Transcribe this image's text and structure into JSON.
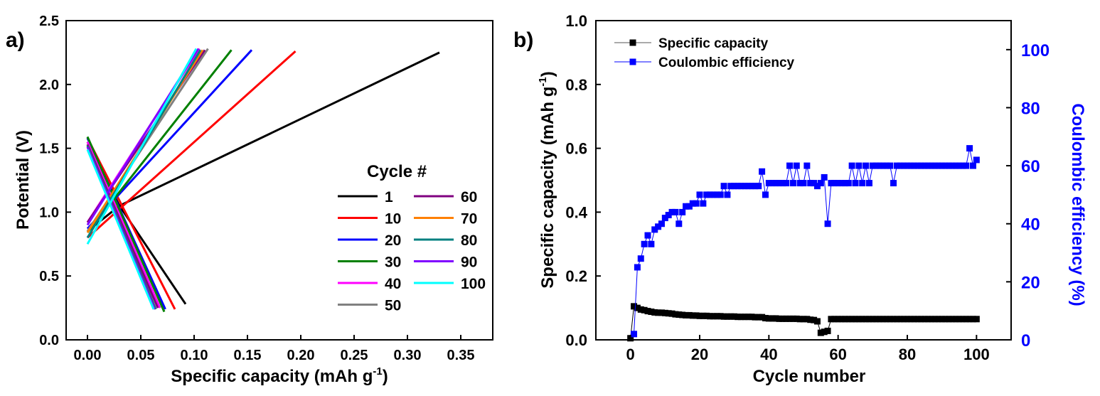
{
  "panels": {
    "a_label": "a)",
    "b_label": "b)"
  },
  "chart_data": [
    {
      "type": "line",
      "xlabel": "Specific capacity (mAh g",
      "xlabel_sup": "-1",
      "xlabel_end": ")",
      "ylabel": "Potential (V)",
      "xlim": [
        -0.02,
        0.38
      ],
      "ylim": [
        0.0,
        2.5
      ],
      "xticks": [
        "0.00",
        "0.05",
        "0.10",
        "0.15",
        "0.20",
        "0.25",
        "0.30",
        "0.35"
      ],
      "yticks": [
        "0.0",
        "0.5",
        "1.0",
        "1.5",
        "2.0",
        "2.5"
      ],
      "legend_title": "Cycle #",
      "legend_placement": "center-right",
      "series": [
        {
          "name": "1",
          "color": "#000000",
          "discharge": [
            [
              0.0,
              1.55
            ],
            [
              0.03,
              1.05
            ],
            [
              0.092,
              0.28
            ]
          ],
          "charge": [
            [
              0.0,
              0.85
            ],
            [
              0.03,
              1.05
            ],
            [
              0.33,
              2.25
            ]
          ]
        },
        {
          "name": "10",
          "color": "#ff0000",
          "discharge": [
            [
              0.0,
              1.58
            ],
            [
              0.082,
              0.24
            ]
          ],
          "charge": [
            [
              0.0,
              0.8
            ],
            [
              0.195,
              2.26
            ]
          ]
        },
        {
          "name": "20",
          "color": "#0000ff",
          "discharge": [
            [
              0.0,
              1.58
            ],
            [
              0.073,
              0.24
            ]
          ],
          "charge": [
            [
              0.0,
              0.87
            ],
            [
              0.154,
              2.27
            ]
          ]
        },
        {
          "name": "30",
          "color": "#008000",
          "discharge": [
            [
              0.0,
              1.59
            ],
            [
              0.072,
              0.22
            ]
          ],
          "charge": [
            [
              0.0,
              0.84
            ],
            [
              0.135,
              2.27
            ]
          ]
        },
        {
          "name": "40",
          "color": "#ff00ff",
          "discharge": [
            [
              0.0,
              1.55
            ],
            [
              0.068,
              0.25
            ]
          ],
          "charge": [
            [
              0.0,
              0.92
            ],
            [
              0.105,
              2.28
            ]
          ]
        },
        {
          "name": "50",
          "color": "#808080",
          "discharge": [
            [
              0.0,
              1.53
            ],
            [
              0.066,
              0.25
            ]
          ],
          "charge": [
            [
              0.0,
              0.85
            ],
            [
              0.113,
              2.28
            ]
          ]
        },
        {
          "name": "60",
          "color": "#800080",
          "discharge": [
            [
              0.0,
              1.53
            ],
            [
              0.066,
              0.25
            ]
          ],
          "charge": [
            [
              0.0,
              0.92
            ],
            [
              0.11,
              2.27
            ]
          ]
        },
        {
          "name": "70",
          "color": "#ff8000",
          "discharge": [
            [
              0.0,
              1.52
            ],
            [
              0.064,
              0.24
            ]
          ],
          "charge": [
            [
              0.0,
              0.84
            ],
            [
              0.108,
              2.27
            ]
          ]
        },
        {
          "name": "80",
          "color": "#008080",
          "discharge": [
            [
              0.0,
              1.52
            ],
            [
              0.064,
              0.24
            ]
          ],
          "charge": [
            [
              0.0,
              0.8
            ],
            [
              0.106,
              2.27
            ]
          ]
        },
        {
          "name": "90",
          "color": "#8000ff",
          "discharge": [
            [
              0.0,
              1.51
            ],
            [
              0.063,
              0.24
            ]
          ],
          "charge": [
            [
              0.0,
              0.9
            ],
            [
              0.104,
              2.28
            ]
          ]
        },
        {
          "name": "100",
          "color": "#00ffff",
          "discharge": [
            [
              0.0,
              1.49
            ],
            [
              0.062,
              0.24
            ]
          ],
          "charge": [
            [
              0.0,
              0.75
            ],
            [
              0.102,
              2.28
            ]
          ]
        }
      ]
    },
    {
      "type": "scatter",
      "xlabel": "Cycle number",
      "ylabel": "Specific capacity (mAh g",
      "ylabel_sup": "-1",
      "ylabel_end": ")",
      "y2label": "Coulombic efficiency (%)",
      "xlim": [
        -10,
        110
      ],
      "ylim": [
        0.0,
        1.0
      ],
      "y2lim": [
        0,
        110
      ],
      "xticks": [
        "0",
        "20",
        "40",
        "60",
        "80",
        "100"
      ],
      "yticks": [
        "0.0",
        "0.2",
        "0.4",
        "0.6",
        "0.8",
        "1.0"
      ],
      "y2ticks": [
        "0",
        "20",
        "40",
        "60",
        "80",
        "100"
      ],
      "legend_placement": "top-left",
      "series": [
        {
          "name": "Specific capacity",
          "color": "#000000",
          "axis": "left",
          "x": [
            0,
            1,
            2,
            3,
            4,
            5,
            6,
            7,
            8,
            9,
            10,
            11,
            12,
            13,
            14,
            15,
            16,
            17,
            18,
            19,
            20,
            21,
            22,
            23,
            24,
            25,
            26,
            27,
            28,
            29,
            30,
            31,
            32,
            33,
            34,
            35,
            36,
            37,
            38,
            39,
            40,
            41,
            42,
            43,
            44,
            45,
            46,
            47,
            48,
            49,
            50,
            51,
            52,
            53,
            54,
            55,
            56,
            57,
            58,
            59,
            60,
            61,
            62,
            63,
            64,
            65,
            66,
            67,
            68,
            69,
            70,
            71,
            72,
            73,
            74,
            75,
            76,
            77,
            78,
            79,
            80,
            81,
            82,
            83,
            84,
            85,
            86,
            87,
            88,
            89,
            90,
            91,
            92,
            93,
            94,
            95,
            96,
            97,
            98,
            99,
            100
          ],
          "y": [
            0.005,
            0.105,
            0.1,
            0.095,
            0.093,
            0.09,
            0.088,
            0.086,
            0.085,
            0.085,
            0.084,
            0.083,
            0.082,
            0.08,
            0.079,
            0.078,
            0.077,
            0.077,
            0.076,
            0.076,
            0.075,
            0.075,
            0.075,
            0.074,
            0.074,
            0.074,
            0.074,
            0.073,
            0.073,
            0.073,
            0.073,
            0.072,
            0.072,
            0.072,
            0.072,
            0.072,
            0.071,
            0.071,
            0.071,
            0.068,
            0.067,
            0.067,
            0.067,
            0.066,
            0.066,
            0.066,
            0.066,
            0.066,
            0.066,
            0.065,
            0.065,
            0.065,
            0.063,
            0.062,
            0.058,
            0.022,
            0.025,
            0.028,
            0.065,
            0.065,
            0.065,
            0.065,
            0.065,
            0.065,
            0.065,
            0.065,
            0.065,
            0.065,
            0.065,
            0.065,
            0.065,
            0.065,
            0.065,
            0.065,
            0.065,
            0.065,
            0.065,
            0.065,
            0.065,
            0.065,
            0.065,
            0.065,
            0.065,
            0.065,
            0.065,
            0.065,
            0.065,
            0.065,
            0.065,
            0.065,
            0.065,
            0.065,
            0.065,
            0.065,
            0.065,
            0.065,
            0.065,
            0.065,
            0.065,
            0.065,
            0.065
          ]
        },
        {
          "name": "Coulombic efficiency",
          "color": "#0000ff",
          "axis": "right",
          "x": [
            1,
            2,
            3,
            4,
            5,
            6,
            7,
            8,
            9,
            10,
            11,
            12,
            13,
            14,
            15,
            16,
            17,
            18,
            19,
            20,
            21,
            22,
            23,
            24,
            25,
            26,
            27,
            28,
            29,
            30,
            31,
            32,
            33,
            34,
            35,
            36,
            37,
            38,
            39,
            40,
            41,
            42,
            43,
            44,
            45,
            46,
            47,
            48,
            49,
            50,
            51,
            52,
            53,
            54,
            55,
            56,
            57,
            58,
            59,
            60,
            61,
            62,
            63,
            64,
            65,
            66,
            67,
            68,
            69,
            70,
            71,
            72,
            73,
            74,
            75,
            76,
            77,
            78,
            79,
            80,
            81,
            82,
            83,
            84,
            85,
            86,
            87,
            88,
            89,
            90,
            91,
            92,
            93,
            94,
            95,
            96,
            97,
            98,
            99,
            100
          ],
          "y": [
            2,
            25,
            28,
            33,
            36,
            33,
            38,
            39,
            40,
            42,
            43,
            44,
            44,
            40,
            44,
            46,
            46,
            47,
            47,
            50,
            47,
            50,
            50,
            50,
            50,
            50,
            53,
            50,
            53,
            53,
            53,
            53,
            53,
            53,
            53,
            53,
            53,
            58,
            50,
            54,
            54,
            54,
            54,
            54,
            54,
            60,
            54,
            60,
            54,
            54,
            60,
            54,
            54,
            53,
            54,
            56,
            40,
            54,
            54,
            54,
            54,
            54,
            54,
            60,
            54,
            60,
            54,
            60,
            54,
            60,
            60,
            60,
            60,
            60,
            60,
            54,
            60,
            60,
            60,
            60,
            60,
            60,
            60,
            60,
            60,
            60,
            60,
            60,
            60,
            60,
            60,
            60,
            60,
            60,
            60,
            60,
            60,
            66,
            60,
            62
          ]
        }
      ]
    }
  ]
}
